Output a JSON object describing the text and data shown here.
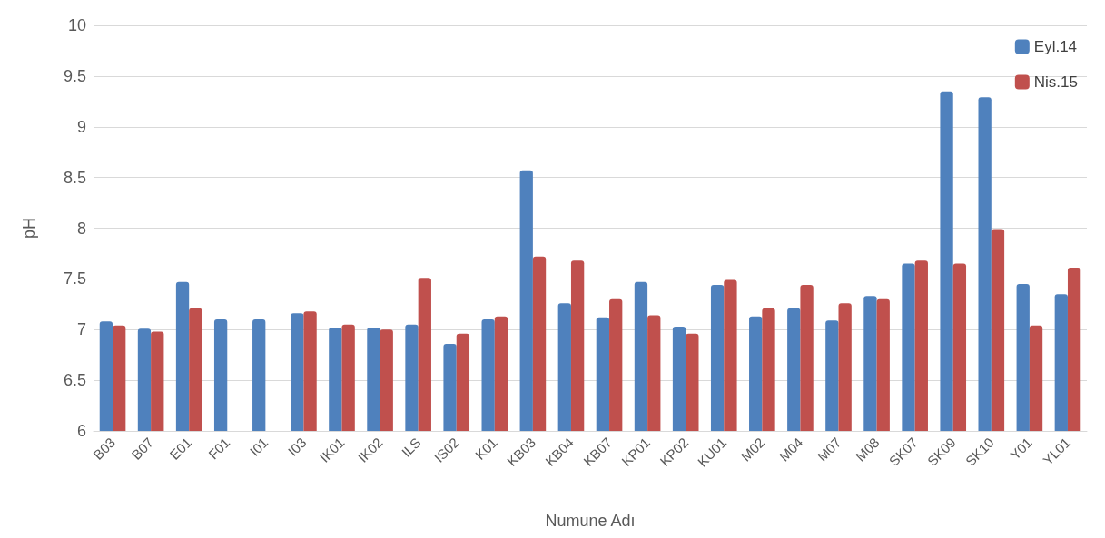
{
  "chart_data": {
    "type": "bar",
    "xlabel": "Numune Adı",
    "ylabel": "pH",
    "categories": [
      "B03",
      "B07",
      "E01",
      "F01",
      "I01",
      "I03",
      "IK01",
      "IK02",
      "ILS",
      "IS02",
      "K01",
      "KB03",
      "KB04",
      "KB07",
      "KP01",
      "KP02",
      "KU01",
      "M02",
      "M04",
      "M07",
      "M08",
      "SK07",
      "SK09",
      "SK10",
      "Y01",
      "YL01"
    ],
    "series": [
      {
        "name": "Eyl.14",
        "color": "#4f81bd",
        "values": [
          7.08,
          7.01,
          7.47,
          7.1,
          7.1,
          7.16,
          7.02,
          7.02,
          7.05,
          6.86,
          7.1,
          8.57,
          7.26,
          7.12,
          7.47,
          7.03,
          7.44,
          7.13,
          7.21,
          7.09,
          7.33,
          7.65,
          9.35,
          9.29,
          7.45,
          7.35
        ]
      },
      {
        "name": "Nis.15",
        "color": "#c0504d",
        "values": [
          7.04,
          6.98,
          7.21,
          null,
          null,
          7.18,
          7.05,
          7.0,
          7.51,
          6.96,
          7.13,
          7.72,
          7.68,
          7.3,
          7.14,
          6.96,
          7.49,
          7.21,
          7.44,
          7.26,
          7.3,
          7.68,
          7.65,
          7.99,
          7.04,
          7.61
        ]
      }
    ],
    "ylim": [
      6,
      10
    ],
    "yticks": [
      6,
      6.5,
      7,
      7.5,
      8,
      8.5,
      9,
      9.5,
      10
    ],
    "grid": "y",
    "legend": "top right"
  }
}
